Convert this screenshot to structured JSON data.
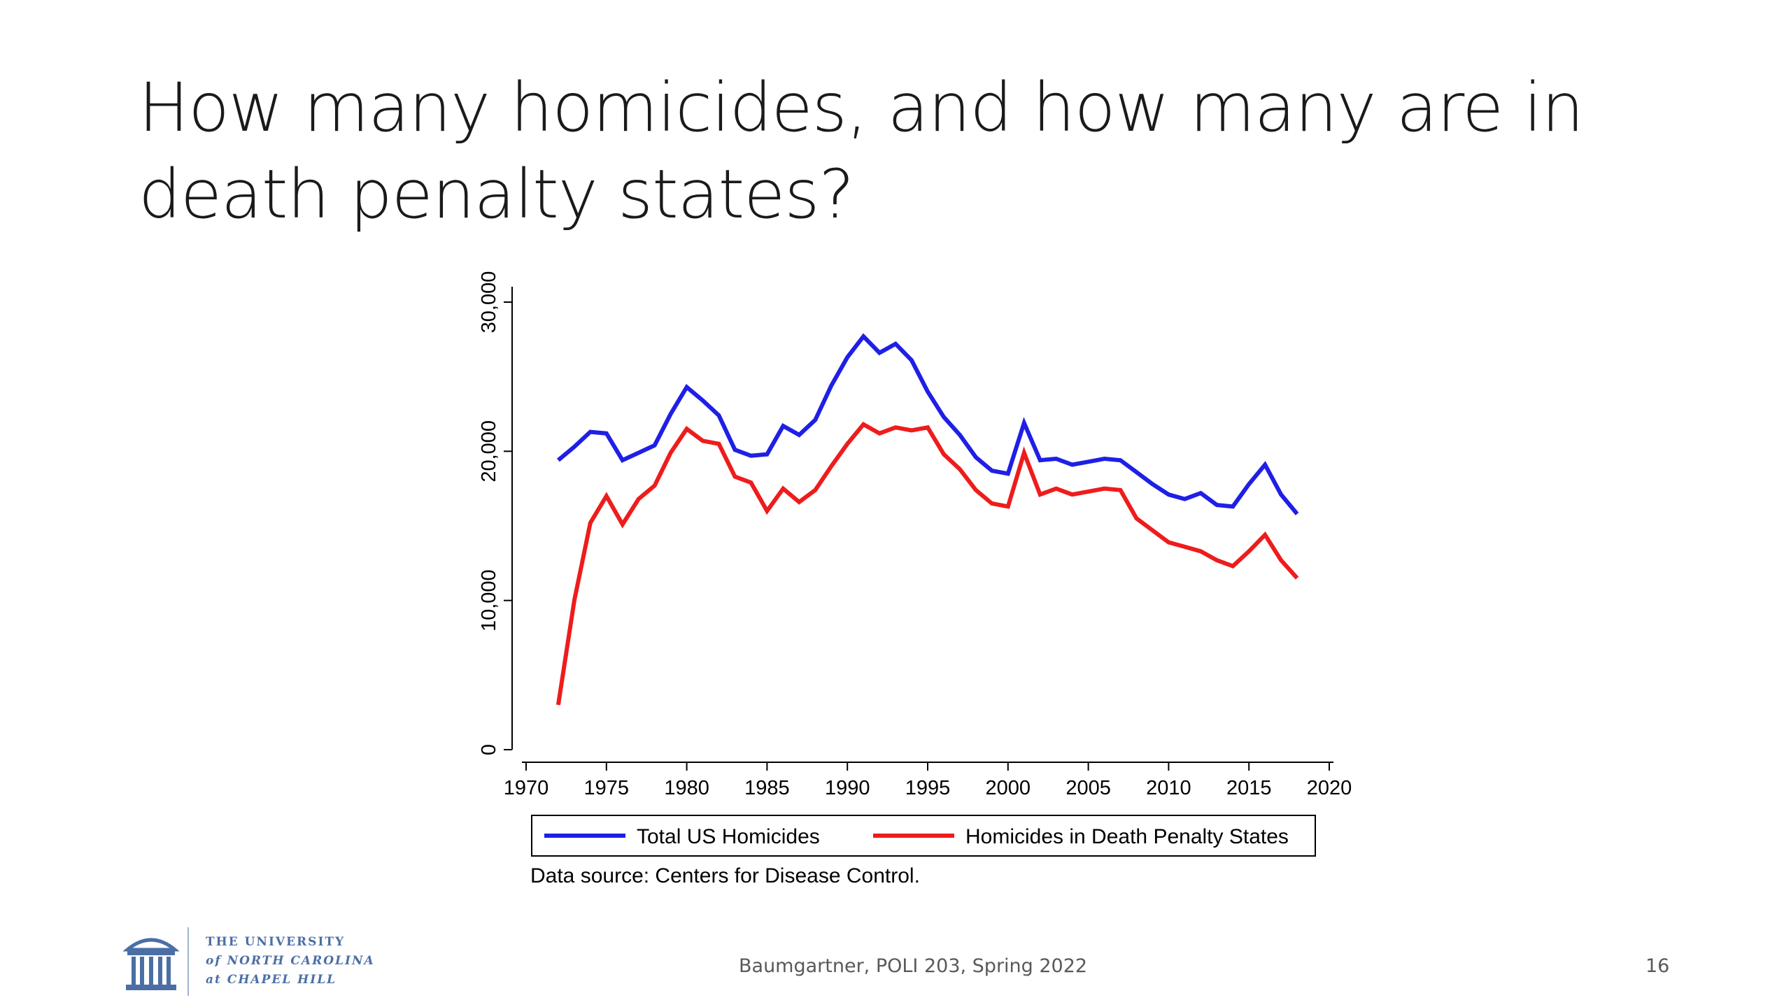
{
  "slide": {
    "title_line1": "How many homicides, and how many are in",
    "title_line2": "death penalty states?",
    "footer_center": "Baumgartner, POLI 203, Spring 2022",
    "page_number": "16",
    "logo": {
      "line1": "THE UNIVERSITY",
      "line2": "of NORTH CAROLINA",
      "line3": "at CHAPEL HILL",
      "icon": "old-well-icon"
    }
  },
  "chart_data": {
    "type": "line",
    "title": "",
    "xlabel": "",
    "ylabel": "",
    "xlim": [
      1970,
      2020
    ],
    "ylim": [
      0,
      30000
    ],
    "x_ticks": [
      "1970",
      "1975",
      "1980",
      "1985",
      "1990",
      "1995",
      "2000",
      "2005",
      "2010",
      "2015",
      "2020"
    ],
    "y_ticks": [
      "0",
      "10,000",
      "20,000",
      "30,000"
    ],
    "grid": false,
    "legend_position": "bottom",
    "source_note": "Data source: Centers for Disease Control.",
    "colors": {
      "total": "#1f1fe6",
      "dp": "#ee1c1c"
    },
    "x": [
      1972,
      1973,
      1974,
      1975,
      1976,
      1977,
      1978,
      1979,
      1980,
      1981,
      1982,
      1983,
      1984,
      1985,
      1986,
      1987,
      1988,
      1989,
      1990,
      1991,
      1992,
      1993,
      1994,
      1995,
      1996,
      1997,
      1998,
      1999,
      2000,
      2001,
      2002,
      2003,
      2004,
      2005,
      2006,
      2007,
      2008,
      2009,
      2010,
      2011,
      2012,
      2013,
      2014,
      2015,
      2016,
      2017,
      2018
    ],
    "series": [
      {
        "name": "Total US Homicides",
        "color": "#1f1fe6",
        "values": [
          19400,
          20300,
          21300,
          21200,
          19400,
          19900,
          20400,
          22500,
          24300,
          23400,
          22400,
          20100,
          19700,
          19800,
          21700,
          21100,
          22100,
          24400,
          26300,
          27700,
          26600,
          27200,
          26100,
          24000,
          22300,
          21100,
          19600,
          18700,
          18500,
          21900,
          19400,
          19500,
          19100,
          19300,
          19500,
          19400,
          18600,
          17800,
          17100,
          16800,
          17200,
          16400,
          16300,
          17800,
          19100,
          17100,
          15800
        ]
      },
      {
        "name": "Homicides in Death Penalty States",
        "color": "#ee1c1c",
        "values": [
          3000,
          10000,
          15200,
          17000,
          15100,
          16800,
          17700,
          19900,
          21500,
          20700,
          20500,
          18300,
          17900,
          16000,
          17500,
          16600,
          17400,
          19000,
          20500,
          21800,
          21200,
          21600,
          21400,
          21600,
          19800,
          18800,
          17400,
          16500,
          16300,
          19900,
          17100,
          17500,
          17100,
          17300,
          17500,
          17400,
          15500,
          14700,
          13900,
          13600,
          13300,
          12700,
          12300,
          13300,
          14400,
          12700,
          11500
        ]
      }
    ]
  }
}
